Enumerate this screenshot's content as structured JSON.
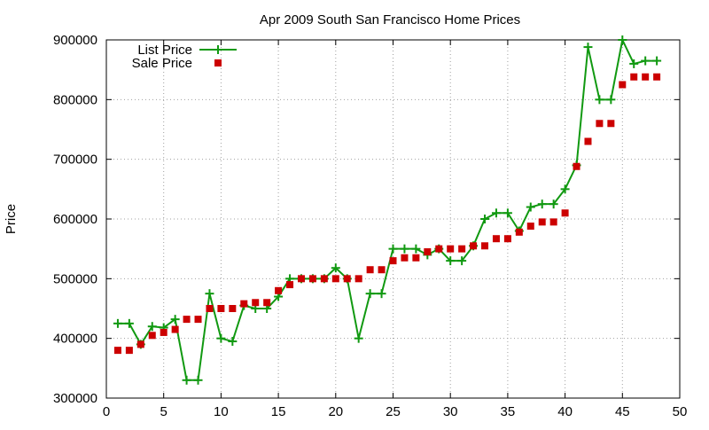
{
  "chart_data": {
    "type": "line",
    "title": "Apr 2009 South San Francisco Home Prices",
    "xlabel": "",
    "ylabel": "Price",
    "xlim": [
      0,
      50
    ],
    "ylim": [
      300000,
      900000
    ],
    "xticks": [
      0,
      5,
      10,
      15,
      20,
      25,
      30,
      35,
      40,
      45,
      50
    ],
    "yticks": [
      300000,
      400000,
      500000,
      600000,
      700000,
      800000,
      900000
    ],
    "grid": true,
    "legend_position": "top-left",
    "x": [
      1,
      2,
      3,
      4,
      5,
      6,
      7,
      8,
      9,
      10,
      11,
      12,
      13,
      14,
      15,
      16,
      17,
      18,
      19,
      20,
      21,
      22,
      23,
      24,
      25,
      26,
      27,
      28,
      29,
      30,
      31,
      32,
      33,
      34,
      35,
      36,
      37,
      38,
      39,
      40,
      41,
      42,
      43,
      44,
      45,
      46,
      47,
      48
    ],
    "series": [
      {
        "name": "List Price",
        "style": "lines+points",
        "marker": "plus",
        "color": "#119911",
        "values": [
          425000,
          425000,
          390000,
          420000,
          418000,
          432000,
          330000,
          330000,
          475000,
          400000,
          395000,
          455000,
          450000,
          450000,
          470000,
          500000,
          500000,
          500000,
          500000,
          518000,
          500000,
          400000,
          475000,
          475000,
          550000,
          550000,
          550000,
          540000,
          550000,
          530000,
          530000,
          555000,
          600000,
          610000,
          610000,
          580000,
          620000,
          625000,
          625000,
          650000,
          690000,
          888000,
          800000,
          800000,
          900000,
          860000,
          865000,
          865000
        ]
      },
      {
        "name": "Sale Price",
        "style": "points",
        "marker": "square",
        "color": "#cc0000",
        "values": [
          380000,
          380000,
          390000,
          405000,
          410000,
          415000,
          432000,
          432000,
          450000,
          450000,
          450000,
          458000,
          460000,
          460000,
          480000,
          490000,
          500000,
          500000,
          500000,
          500000,
          500000,
          500000,
          515000,
          515000,
          530000,
          535000,
          535000,
          545000,
          550000,
          550000,
          550000,
          555000,
          555000,
          567000,
          567000,
          578000,
          588000,
          595000,
          595000,
          610000,
          688000,
          730000,
          760000,
          760000,
          825000,
          838000,
          838000,
          838000
        ]
      }
    ]
  }
}
